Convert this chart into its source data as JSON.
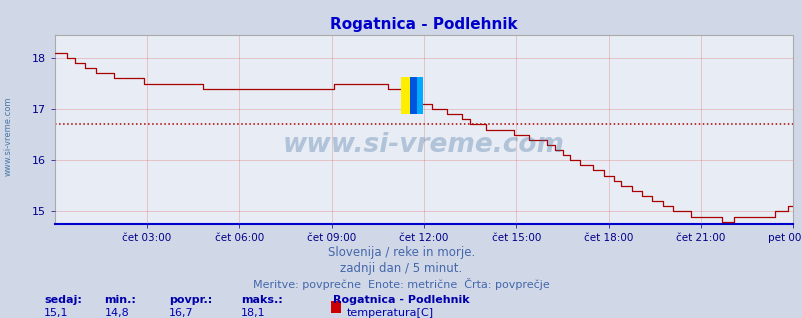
{
  "title": "Rogatnica - Podlehnik",
  "title_color": "#0000cc",
  "bg_color": "#d0d8e8",
  "plot_bg_color": "#e8ecf4",
  "line_color": "#aa0000",
  "avg_line_color": "#aa0000",
  "avg_value": 16.7,
  "ylim": [
    14.75,
    18.45
  ],
  "yticks": [
    15,
    16,
    17,
    18
  ],
  "x_labels": [
    "čet 03:00",
    "čet 06:00",
    "čet 09:00",
    "čet 12:00",
    "čet 15:00",
    "čet 18:00",
    "čet 21:00",
    "pet 00:00"
  ],
  "grid_color": "#dd6666",
  "tick_color": "#000088",
  "watermark": "www.si-vreme.com",
  "watermark_color": "#336699",
  "side_text": "www.si-vreme.com",
  "side_text_color": "#336699",
  "footer_line1": "Slovenija / reke in morje.",
  "footer_line2": "zadnji dan / 5 minut.",
  "footer_line3": "Meritve: povprečne  Enote: metrične  Črta: povprečje",
  "footer_color": "#4466aa",
  "legend_title": "Rogatnica - Podlehnik",
  "legend_label": "temperatura[C]",
  "legend_color": "#cc0000",
  "stats_labels": [
    "sedaj:",
    "min.:",
    "povpr.:",
    "maks.:"
  ],
  "stats_values": [
    "15,1",
    "14,8",
    "16,7",
    "18,1"
  ],
  "stats_color": "#0000aa",
  "logo_colors": [
    "#ffee00",
    "#0055dd",
    "#00aaff"
  ],
  "bottom_axis_color": "#0000cc"
}
